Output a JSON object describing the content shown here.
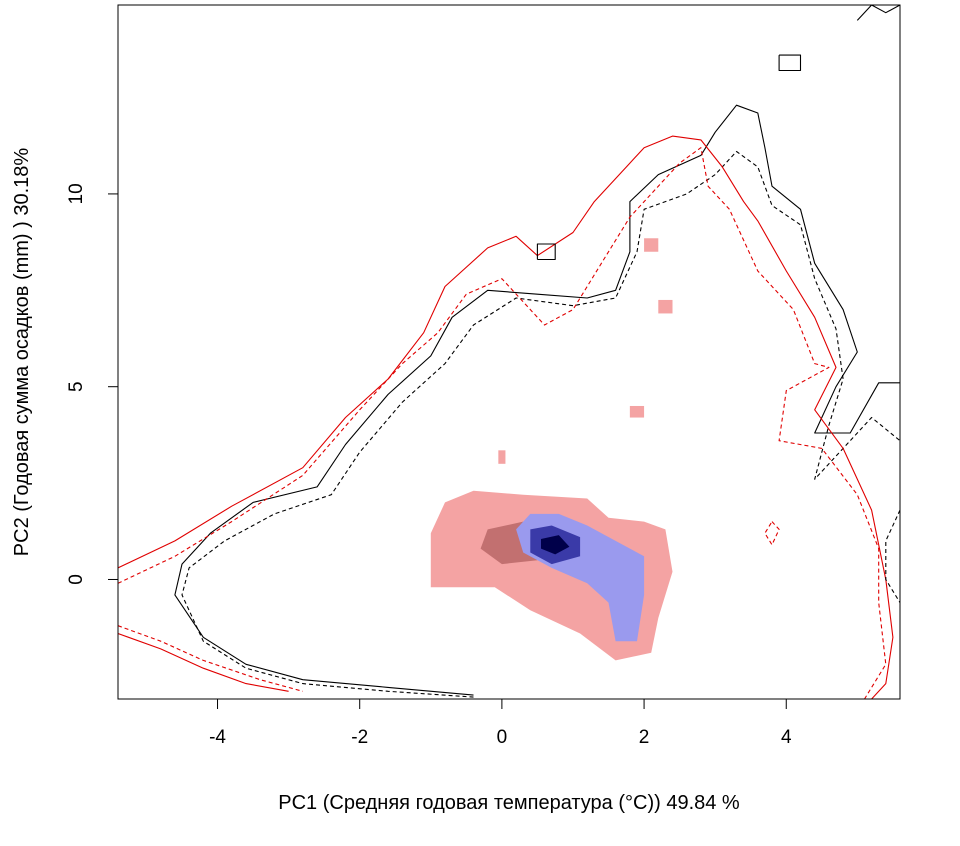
{
  "chart_data": {
    "type": "heatmap",
    "title": "",
    "xlabel": "PC1 (Средняя годовая температура (°C)) 49.84 %",
    "ylabel": "PC2 (Годовая сумма осадков  (mm) ) 30.18%",
    "xlim": [
      -5.4,
      5.6
    ],
    "ylim": [
      -3.1,
      14.9
    ],
    "x_ticks": [
      {
        "value": -4,
        "label": "-4"
      },
      {
        "value": -2,
        "label": "-2"
      },
      {
        "value": 0,
        "label": "0"
      },
      {
        "value": 2,
        "label": "2"
      },
      {
        "value": 4,
        "label": "4"
      }
    ],
    "y_ticks": [
      {
        "value": 0,
        "label": "0"
      },
      {
        "value": 5,
        "label": "5"
      },
      {
        "value": 10,
        "label": "10"
      }
    ],
    "grid": false,
    "colors": {
      "niche_overlap": "#f4a3a3",
      "niche_overlap_dark": "#b06060",
      "niche_blue_light": "#9a9aee",
      "niche_blue_dark": "#00004a",
      "contour_red": "#e00000",
      "contour_black": "#000000"
    },
    "density_regions": [
      {
        "name": "pink",
        "color": "#f4a3a3",
        "points": [
          [
            -1.0,
            1.2
          ],
          [
            -0.8,
            2.0
          ],
          [
            -0.4,
            2.3
          ],
          [
            0.3,
            2.2
          ],
          [
            1.2,
            2.1
          ],
          [
            1.5,
            1.6
          ],
          [
            2.0,
            1.5
          ],
          [
            2.3,
            1.3
          ],
          [
            2.4,
            0.2
          ],
          [
            2.2,
            -1.0
          ],
          [
            2.1,
            -1.9
          ],
          [
            1.6,
            -2.1
          ],
          [
            1.1,
            -1.4
          ],
          [
            0.4,
            -0.8
          ],
          [
            -0.1,
            -0.2
          ],
          [
            -1.0,
            -0.2
          ]
        ]
      },
      {
        "name": "pink-dark-core",
        "color": "#c27070",
        "points": [
          [
            -0.2,
            1.3
          ],
          [
            0.3,
            1.5
          ],
          [
            0.6,
            1.1
          ],
          [
            0.5,
            0.5
          ],
          [
            0.0,
            0.4
          ],
          [
            -0.3,
            0.8
          ]
        ]
      },
      {
        "name": "blue",
        "color": "#9a9aee",
        "points": [
          [
            0.2,
            1.3
          ],
          [
            0.4,
            1.7
          ],
          [
            0.8,
            1.7
          ],
          [
            1.2,
            1.4
          ],
          [
            1.6,
            1.0
          ],
          [
            2.0,
            0.6
          ],
          [
            2.0,
            -0.4
          ],
          [
            1.9,
            -1.6
          ],
          [
            1.6,
            -1.6
          ],
          [
            1.5,
            -0.6
          ],
          [
            1.2,
            -0.1
          ],
          [
            0.7,
            0.3
          ],
          [
            0.3,
            0.7
          ]
        ]
      },
      {
        "name": "blue-core",
        "color": "#3a3aa8",
        "points": [
          [
            0.4,
            1.3
          ],
          [
            0.7,
            1.4
          ],
          [
            1.1,
            1.1
          ],
          [
            1.1,
            0.6
          ],
          [
            0.7,
            0.4
          ],
          [
            0.4,
            0.7
          ]
        ]
      },
      {
        "name": "blue-peak",
        "color": "#00004a",
        "points": [
          [
            0.55,
            1.05
          ],
          [
            0.8,
            1.15
          ],
          [
            0.95,
            0.85
          ],
          [
            0.75,
            0.65
          ],
          [
            0.55,
            0.8
          ]
        ]
      }
    ],
    "pixels": [
      {
        "x": -0.05,
        "y": 3.0,
        "w": 0.1,
        "h": 0.35
      },
      {
        "x": 1.8,
        "y": 4.2,
        "w": 0.2,
        "h": 0.3
      },
      {
        "x": 2.0,
        "y": 8.5,
        "w": 0.2,
        "h": 0.35
      },
      {
        "x": 2.2,
        "y": 6.9,
        "w": 0.2,
        "h": 0.35
      }
    ],
    "contours": [
      {
        "name": "black-solid",
        "color": "#000000",
        "dashed": false,
        "points": [
          [
            -0.4,
            -3.0
          ],
          [
            -1.6,
            -2.8
          ],
          [
            -2.8,
            -2.6
          ],
          [
            -3.6,
            -2.2
          ],
          [
            -4.2,
            -1.5
          ],
          [
            -4.6,
            -0.4
          ],
          [
            -4.5,
            0.4
          ],
          [
            -4.1,
            1.2
          ],
          [
            -3.5,
            2.0
          ],
          [
            -2.6,
            2.4
          ],
          [
            -2.2,
            3.5
          ],
          [
            -1.6,
            4.8
          ],
          [
            -1.0,
            5.8
          ],
          [
            -0.7,
            6.8
          ],
          [
            -0.2,
            7.5
          ],
          [
            0.5,
            7.4
          ],
          [
            1.2,
            7.3
          ],
          [
            1.6,
            7.5
          ],
          [
            1.8,
            8.5
          ],
          [
            1.8,
            9.8
          ],
          [
            2.2,
            10.5
          ],
          [
            2.8,
            11.0
          ],
          [
            3.0,
            11.6
          ],
          [
            3.3,
            12.3
          ],
          [
            3.6,
            12.1
          ],
          [
            3.7,
            11.2
          ],
          [
            3.8,
            10.2
          ],
          [
            4.2,
            9.6
          ],
          [
            4.4,
            8.2
          ],
          [
            4.8,
            7.0
          ],
          [
            5.0,
            5.9
          ],
          [
            4.7,
            5.0
          ],
          [
            4.4,
            3.8
          ],
          [
            4.9,
            3.8
          ],
          [
            5.3,
            5.1
          ],
          [
            5.6,
            5.1
          ]
        ]
      },
      {
        "name": "black-dashed",
        "color": "#000000",
        "dashed": true,
        "points": [
          [
            -0.4,
            -3.05
          ],
          [
            -1.6,
            -2.9
          ],
          [
            -2.8,
            -2.7
          ],
          [
            -3.6,
            -2.3
          ],
          [
            -4.2,
            -1.6
          ],
          [
            -4.5,
            -0.4
          ],
          [
            -4.4,
            0.3
          ],
          [
            -3.9,
            1.0
          ],
          [
            -3.2,
            1.7
          ],
          [
            -2.4,
            2.2
          ],
          [
            -2.0,
            3.3
          ],
          [
            -1.4,
            4.6
          ],
          [
            -0.8,
            5.6
          ],
          [
            -0.4,
            6.6
          ],
          [
            0.2,
            7.3
          ],
          [
            1.0,
            7.1
          ],
          [
            1.6,
            7.3
          ],
          [
            1.9,
            8.5
          ],
          [
            2.0,
            9.6
          ],
          [
            2.6,
            10.0
          ],
          [
            3.0,
            10.5
          ],
          [
            3.3,
            11.1
          ],
          [
            3.6,
            10.7
          ],
          [
            3.8,
            9.7
          ],
          [
            4.2,
            9.2
          ],
          [
            4.4,
            7.8
          ],
          [
            4.7,
            6.5
          ],
          [
            4.8,
            5.2
          ],
          [
            4.6,
            4.0
          ],
          [
            4.4,
            2.6
          ],
          [
            4.9,
            3.6
          ],
          [
            5.2,
            4.2
          ],
          [
            5.6,
            3.6
          ]
        ]
      },
      {
        "name": "red-solid",
        "color": "#e00000",
        "dashed": false,
        "points": [
          [
            -5.4,
            0.3
          ],
          [
            -4.6,
            1.0
          ],
          [
            -3.8,
            1.9
          ],
          [
            -2.8,
            2.9
          ],
          [
            -2.2,
            4.2
          ],
          [
            -1.6,
            5.2
          ],
          [
            -1.1,
            6.4
          ],
          [
            -0.8,
            7.6
          ],
          [
            -0.2,
            8.6
          ],
          [
            0.2,
            8.9
          ],
          [
            0.5,
            8.4
          ],
          [
            1.0,
            9.0
          ],
          [
            1.3,
            9.8
          ],
          [
            1.8,
            10.8
          ],
          [
            2.0,
            11.2
          ],
          [
            2.4,
            11.5
          ],
          [
            2.8,
            11.4
          ],
          [
            3.1,
            10.7
          ],
          [
            3.4,
            9.8
          ],
          [
            3.6,
            9.3
          ],
          [
            4.0,
            8.0
          ],
          [
            4.4,
            6.8
          ],
          [
            4.7,
            5.5
          ],
          [
            4.4,
            4.4
          ],
          [
            4.8,
            3.4
          ],
          [
            5.2,
            1.8
          ],
          [
            5.4,
            0.0
          ],
          [
            5.5,
            -1.5
          ],
          [
            5.4,
            -2.7
          ],
          [
            5.2,
            -3.1
          ]
        ]
      },
      {
        "name": "red-dashed",
        "color": "#e00000",
        "dashed": true,
        "points": [
          [
            -5.4,
            -0.1
          ],
          [
            -4.6,
            0.6
          ],
          [
            -3.8,
            1.5
          ],
          [
            -2.8,
            2.7
          ],
          [
            -2.0,
            4.4
          ],
          [
            -1.4,
            5.6
          ],
          [
            -0.9,
            6.4
          ],
          [
            -0.5,
            7.4
          ],
          [
            0.0,
            7.8
          ],
          [
            0.6,
            6.6
          ],
          [
            1.0,
            7.0
          ],
          [
            1.4,
            8.2
          ],
          [
            1.8,
            9.4
          ],
          [
            2.2,
            10.2
          ],
          [
            2.5,
            10.8
          ],
          [
            2.8,
            11.2
          ],
          [
            2.9,
            10.2
          ],
          [
            3.2,
            9.6
          ],
          [
            3.6,
            8.0
          ],
          [
            4.1,
            7.0
          ],
          [
            4.4,
            5.6
          ],
          [
            4.6,
            5.5
          ],
          [
            4.0,
            4.9
          ],
          [
            3.9,
            3.6
          ],
          [
            4.5,
            3.4
          ],
          [
            5.0,
            2.2
          ],
          [
            5.3,
            0.8
          ],
          [
            5.3,
            -0.6
          ],
          [
            5.4,
            -2.2
          ],
          [
            5.1,
            -3.1
          ]
        ]
      },
      {
        "name": "red-solid-lower",
        "color": "#e00000",
        "dashed": false,
        "points": [
          [
            -5.4,
            -1.4
          ],
          [
            -4.8,
            -1.8
          ],
          [
            -4.2,
            -2.3
          ],
          [
            -3.6,
            -2.7
          ],
          [
            -3.0,
            -2.9
          ]
        ]
      },
      {
        "name": "red-dashed-lower",
        "color": "#e00000",
        "dashed": true,
        "points": [
          [
            -5.4,
            -1.2
          ],
          [
            -4.8,
            -1.6
          ],
          [
            -4.2,
            -2.1
          ],
          [
            -3.4,
            -2.6
          ],
          [
            -2.8,
            -2.9
          ]
        ]
      }
    ],
    "small_contours": [
      {
        "name": "black-island-1",
        "color": "#000000",
        "dashed": false,
        "points": [
          [
            5.0,
            14.5
          ],
          [
            5.2,
            14.9
          ],
          [
            5.4,
            14.7
          ],
          [
            5.6,
            14.9
          ]
        ]
      },
      {
        "name": "black-island-2",
        "color": "#000000",
        "dashed": false,
        "points": [
          [
            3.9,
            13.6
          ],
          [
            4.2,
            13.6
          ],
          [
            4.2,
            13.2
          ],
          [
            3.9,
            13.2
          ],
          [
            3.9,
            13.6
          ]
        ]
      },
      {
        "name": "black-island-3",
        "color": "#000000",
        "dashed": false,
        "points": [
          [
            0.5,
            8.3
          ],
          [
            0.75,
            8.3
          ],
          [
            0.75,
            8.7
          ],
          [
            0.5,
            8.7
          ],
          [
            0.5,
            8.3
          ]
        ]
      },
      {
        "name": "red-island",
        "color": "#e00000",
        "dashed": true,
        "points": [
          [
            3.8,
            1.5
          ],
          [
            3.9,
            1.3
          ],
          [
            3.8,
            0.9
          ],
          [
            3.7,
            1.2
          ],
          [
            3.8,
            1.5
          ]
        ]
      },
      {
        "name": "black-right-edge",
        "color": "#000000",
        "dashed": true,
        "points": [
          [
            5.6,
            1.8
          ],
          [
            5.4,
            1.0
          ],
          [
            5.4,
            0.0
          ],
          [
            5.6,
            -0.6
          ]
        ]
      }
    ]
  }
}
